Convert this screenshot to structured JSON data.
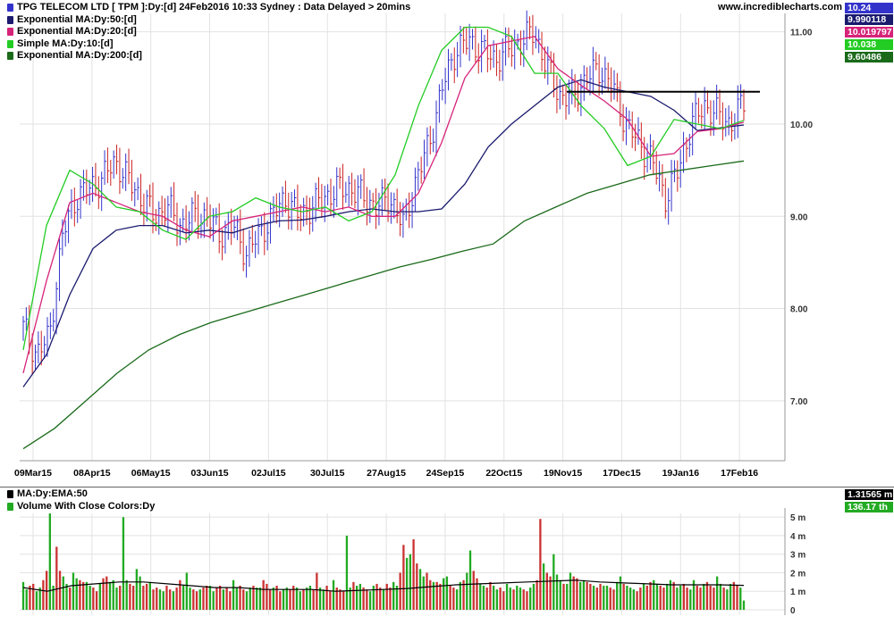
{
  "header": {
    "title": "TPG TELECOM LTD [ TPM ]:Dy:[d]  24Feb2016 10:33 Sydney : Data Delayed > 20mins",
    "site": "www.incrediblecharts.com"
  },
  "legend": [
    {
      "label": "Exponential MA:Dy:50:[d]",
      "color": "#1a1a6e",
      "value": "9.990118"
    },
    {
      "label": "Exponential MA:Dy:20:[d]",
      "color": "#d6237a",
      "value": "10.019797"
    },
    {
      "label": "Simple MA:Dy:10:[d]",
      "color": "#22cc22",
      "value": "10.038"
    },
    {
      "label": "Exponential MA:Dy:200:[d]",
      "color": "#1a6a1a",
      "value": "9.60486"
    }
  ],
  "price_value": {
    "value": "10.24",
    "color": "#3333cc"
  },
  "volume_legend": [
    {
      "label": "MA:Dy:EMA:50",
      "color": "#000000",
      "value": "1.31565 m"
    },
    {
      "label": "Volume With Close Colors:Dy",
      "color": "#22aa22",
      "value": "136.17 th"
    }
  ],
  "colors": {
    "price_bars": "#3333cc",
    "down_bars": "#cc2222",
    "volume_up": "#22aa22",
    "volume_down": "#cc3333",
    "resistance": "#000000"
  },
  "chart_data": [
    {
      "type": "ohlc",
      "title": "TPG TELECOM LTD [ TPM ]",
      "x_ticks": [
        "09Mar15",
        "08Apr15",
        "06May15",
        "03Jun15",
        "02Jul15",
        "30Jul15",
        "27Aug15",
        "24Sep15",
        "22Oct15",
        "19Nov15",
        "17Dec15",
        "19Jan16",
        "17Feb16"
      ],
      "y_ticks": [
        "7.00",
        "8.00",
        "9.00",
        "10.00",
        "11.00"
      ],
      "ylim": [
        6.35,
        11.2
      ],
      "close_approx": [
        7.8,
        7.5,
        7.7,
        8.8,
        9.2,
        9.3,
        9.4,
        9.6,
        9.4,
        9.2,
        9.0,
        9.1,
        8.9,
        9.0,
        9.0,
        8.8,
        8.9,
        8.6,
        8.8,
        9.0,
        9.2,
        9.0,
        9.1,
        9.2,
        9.3,
        9.3,
        9.2,
        9.1,
        9.2,
        8.9,
        9.4,
        9.8,
        10.4,
        10.8,
        10.9,
        10.8,
        10.7,
        10.8,
        10.9,
        11.0,
        10.6,
        10.3,
        10.3,
        10.5,
        10.6,
        10.4,
        10.0,
        9.8,
        9.6,
        9.2,
        9.5,
        10.0,
        10.2,
        10.1,
        10.0,
        10.24
      ],
      "series": [
        {
          "name": "Exponential MA:Dy:50:[d]",
          "values": [
            7.15,
            7.5,
            8.15,
            8.65,
            8.85,
            8.9,
            8.9,
            8.82,
            8.85,
            8.82,
            8.9,
            8.95,
            8.96,
            9.0,
            9.05,
            9.08,
            9.05,
            9.05,
            9.08,
            9.35,
            9.75,
            10.0,
            10.2,
            10.4,
            10.48,
            10.4,
            10.35,
            10.3,
            10.15,
            9.93,
            9.96,
            9.99
          ]
        },
        {
          "name": "Exponential MA:Dy:20:[d]",
          "values": [
            7.3,
            8.3,
            9.15,
            9.25,
            9.15,
            9.05,
            9.0,
            8.85,
            8.78,
            8.95,
            9.0,
            9.05,
            9.1,
            9.05,
            9.1,
            9.0,
            9.0,
            9.25,
            9.8,
            10.5,
            10.85,
            10.9,
            10.95,
            10.6,
            10.42,
            10.25,
            10.05,
            9.65,
            9.68,
            9.92,
            9.95,
            10.02
          ]
        },
        {
          "name": "Simple MA:Dy:10:[d]",
          "values": [
            7.55,
            8.9,
            9.5,
            9.35,
            9.1,
            9.05,
            8.85,
            8.75,
            9.0,
            9.05,
            9.2,
            9.1,
            9.05,
            9.1,
            8.95,
            9.05,
            9.45,
            10.2,
            10.8,
            11.05,
            11.05,
            10.95,
            10.55,
            10.55,
            10.2,
            9.95,
            9.55,
            9.65,
            10.05,
            10.0,
            9.95,
            10.04
          ]
        },
        {
          "name": "Exponential MA:Dy:200:[d]",
          "values": [
            6.48,
            6.7,
            7.0,
            7.3,
            7.55,
            7.72,
            7.85,
            7.95,
            8.05,
            8.15,
            8.25,
            8.35,
            8.45,
            8.53,
            8.62,
            8.7,
            8.95,
            9.1,
            9.25,
            9.35,
            9.45,
            9.5,
            9.55,
            9.6
          ]
        }
      ],
      "resistance_level": 10.35
    },
    {
      "type": "bar",
      "title": "Volume",
      "y_ticks": [
        "0",
        "1 m",
        "2 m",
        "3 m",
        "4 m",
        "5 m"
      ],
      "ylim": [
        0,
        5.2
      ],
      "ema50_approx": [
        1.2,
        1.0,
        1.3,
        1.4,
        1.5,
        1.5,
        1.4,
        1.3,
        1.2,
        1.2,
        1.1,
        1.1,
        1.1,
        1.0,
        1.05,
        1.1,
        1.15,
        1.25,
        1.35,
        1.4,
        1.45,
        1.5,
        1.55,
        1.6,
        1.5,
        1.45,
        1.4,
        1.35,
        1.35,
        1.35,
        1.32
      ],
      "volume_m": [
        1.5,
        1.1,
        1.3,
        1.4,
        1.0,
        1.2,
        1.6,
        2.1,
        5.2,
        1.3,
        3.4,
        2.1,
        1.8,
        1.4,
        1.2,
        2.0,
        1.7,
        1.6,
        1.5,
        1.5,
        1.3,
        1.2,
        1.0,
        1.4,
        1.7,
        1.8,
        1.5,
        1.6,
        1.2,
        1.3,
        5.0,
        1.6,
        1.4,
        1.3,
        2.2,
        1.8,
        1.3,
        1.4,
        1.5,
        1.1,
        1.2,
        1.1,
        1.0,
        1.3,
        1.1,
        1.0,
        1.2,
        1.6,
        1.3,
        2.0,
        1.2,
        1.1,
        1.0,
        1.1,
        1.2,
        1.3,
        1.3,
        1.0,
        1.2,
        1.3,
        1.1,
        1.2,
        1.0,
        1.6,
        1.2,
        1.3,
        1.1,
        1.0,
        1.2,
        1.3,
        1.2,
        1.2,
        1.6,
        1.4,
        1.1,
        1.2,
        1.3,
        1.0,
        1.1,
        1.2,
        1.1,
        1.3,
        1.2,
        1.0,
        1.1,
        1.2,
        1.3,
        1.1,
        2.0,
        1.2,
        1.1,
        1.3,
        1.0,
        1.6,
        1.2,
        1.1,
        1.0,
        4.0,
        1.2,
        1.5,
        1.3,
        1.4,
        1.2,
        1.1,
        1.0,
        1.3,
        1.4,
        1.2,
        1.1,
        1.4,
        1.2,
        1.5,
        1.3,
        2.0,
        3.5,
        2.8,
        3.0,
        3.8,
        2.5,
        2.2,
        1.8,
        2.0,
        1.6,
        1.5,
        1.5,
        1.4,
        1.7,
        1.8,
        1.3,
        1.2,
        1.1,
        1.5,
        1.6,
        2.0,
        3.2,
        2.1,
        1.7,
        1.4,
        1.3,
        1.2,
        1.5,
        1.3,
        1.1,
        1.2,
        1.0,
        1.4,
        1.2,
        1.1,
        1.3,
        1.2,
        1.1,
        1.0,
        1.2,
        1.4,
        1.6,
        4.9,
        2.5,
        2.0,
        1.8,
        3.0,
        1.9,
        1.6,
        1.4,
        1.4,
        2.0,
        1.8,
        1.7,
        1.5,
        1.6,
        1.5,
        1.4,
        1.3,
        1.2,
        1.4,
        1.3,
        1.3,
        1.2,
        1.1,
        1.5,
        1.8,
        1.4,
        1.3,
        1.2,
        1.1,
        1.0,
        1.2,
        1.4,
        1.3,
        1.5,
        1.6,
        1.4,
        1.3,
        1.2,
        1.4,
        1.6,
        1.5,
        1.2,
        1.3,
        1.4,
        1.2,
        1.1,
        1.6,
        1.3,
        1.2,
        1.4,
        1.5,
        1.3,
        1.2,
        1.8,
        1.4,
        1.2,
        1.1,
        1.4,
        1.5,
        1.3,
        1.2,
        0.5
      ]
    }
  ]
}
